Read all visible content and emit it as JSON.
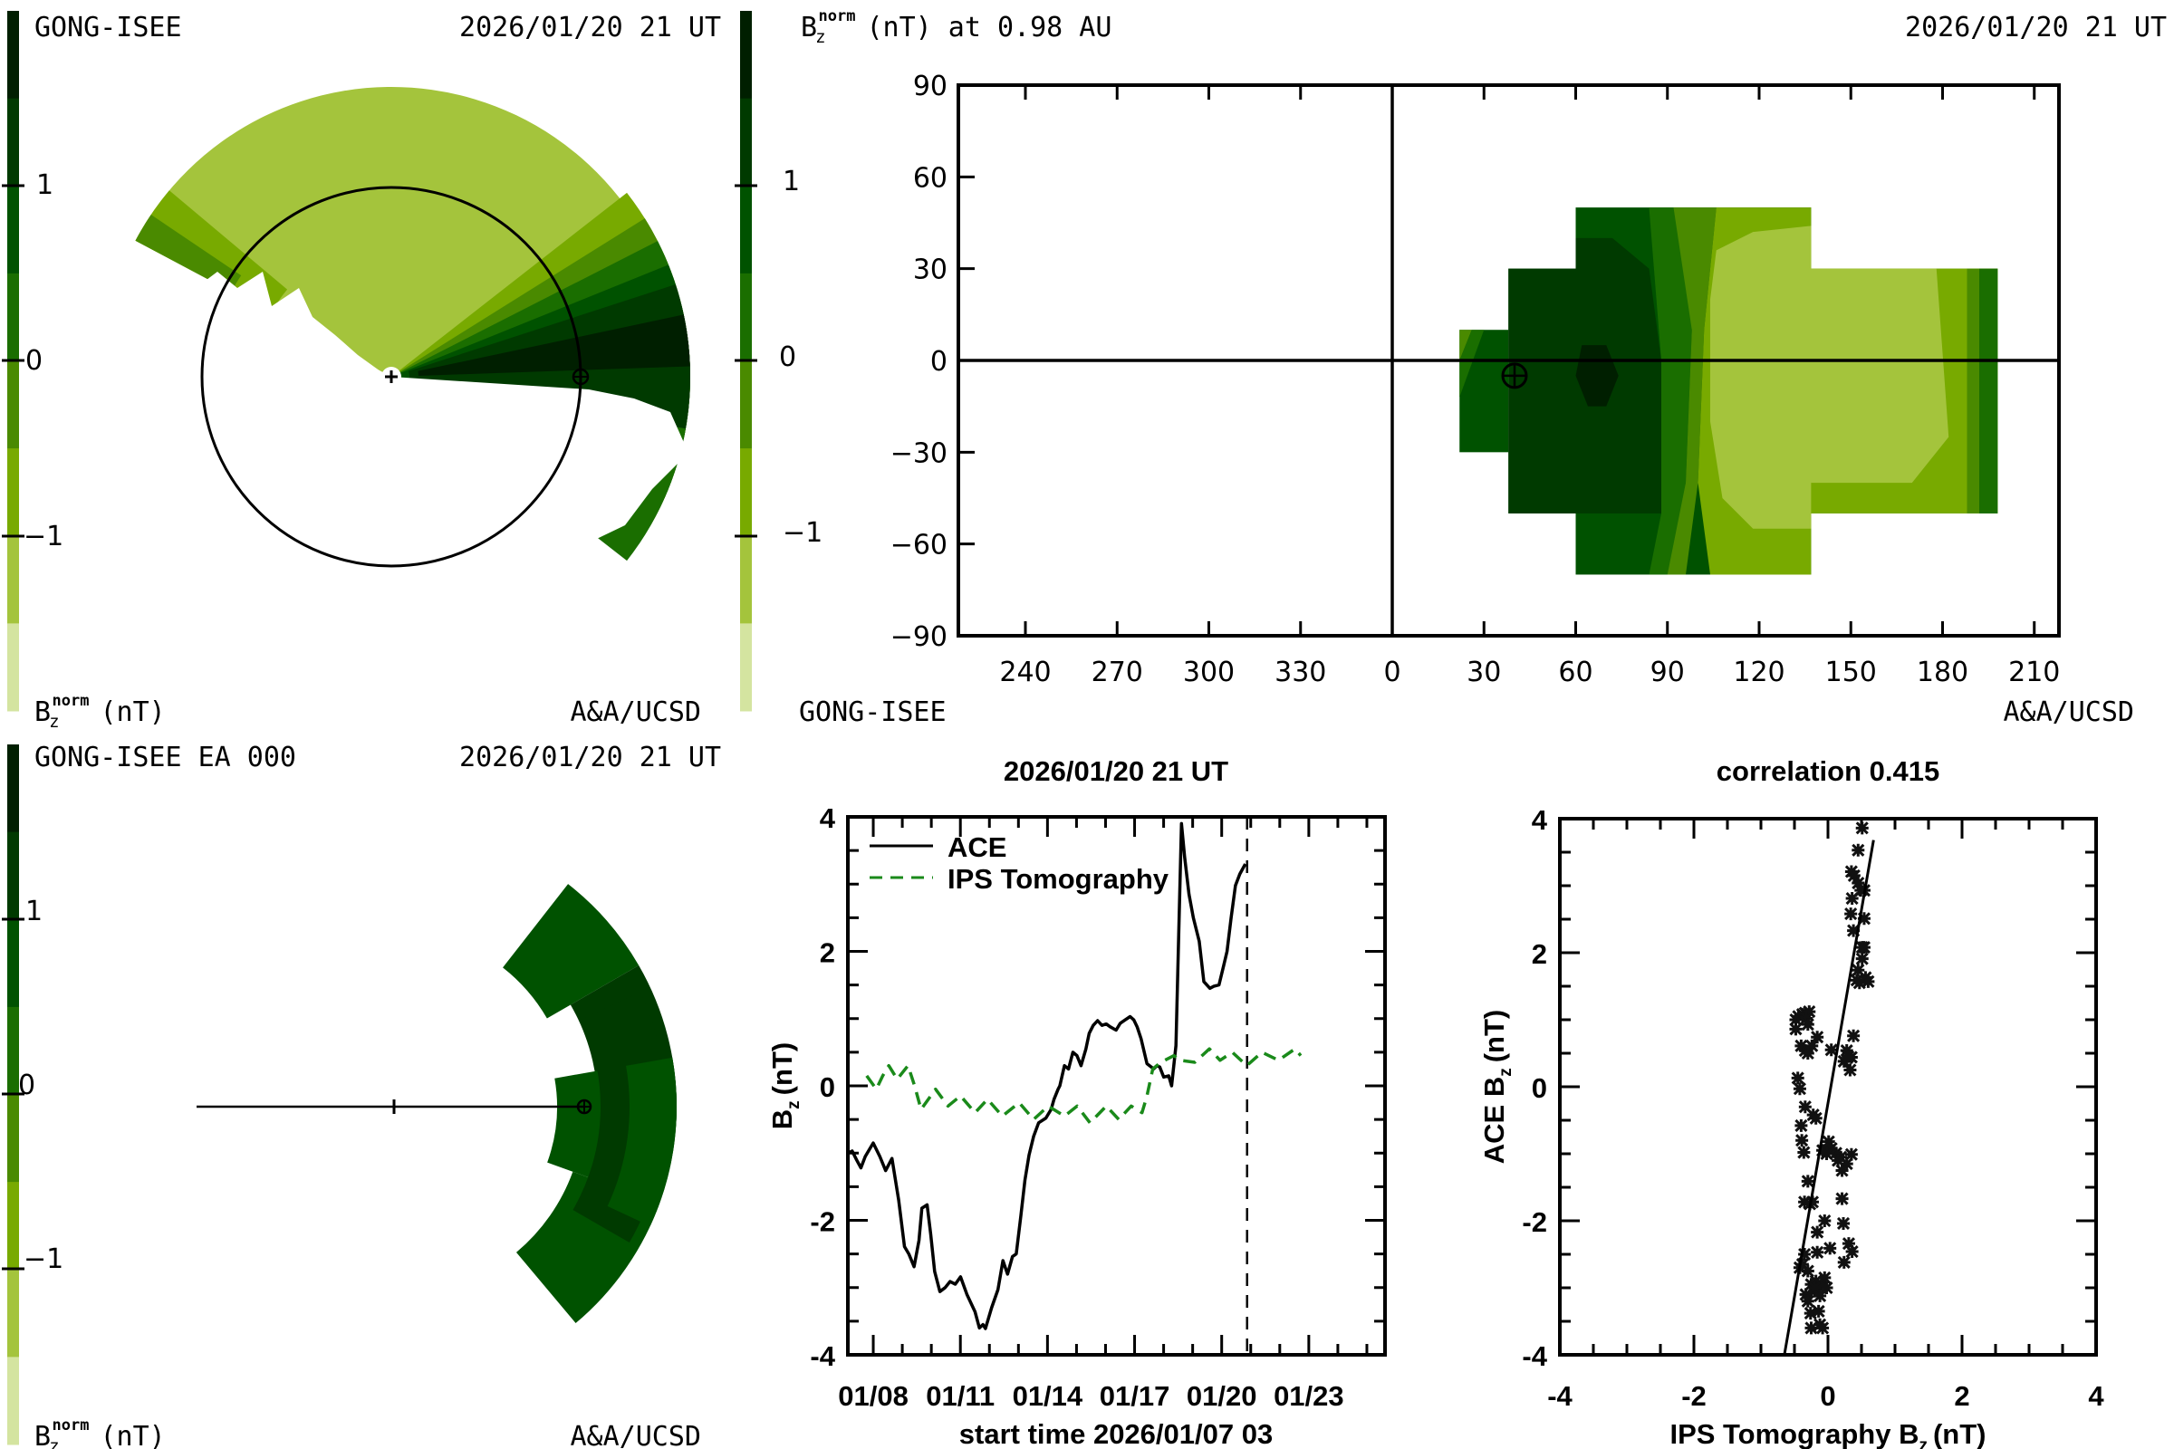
{
  "colors": {
    "bands": [
      "#d4e4a0",
      "#a4c43c",
      "#78aa00",
      "#4a8a00",
      "#1a6e00",
      "#005200",
      "#003a00",
      "#001f00"
    ],
    "ace_line": "#000000",
    "ips_line": "#1a8a1a"
  },
  "panel_tl": {
    "source": "GONG-ISEE",
    "time": "2026/01/20 21 UT",
    "units_base": "B",
    "units_sub": "z",
    "units_sup": "norm",
    "units_rest": "(nT)",
    "credit": "A&A/UCSD",
    "colorbar_ticks": [
      "1",
      "0",
      "−1"
    ]
  },
  "panel_tr": {
    "title_base": "B",
    "title_sub": "z",
    "title_sup": "norm",
    "title_rest": "(nT) at 0.98 AU",
    "time": "2026/01/20 21 UT",
    "source": "GONG-ISEE",
    "credit": "A&A/UCSD",
    "colorbar_ticks": [
      "1",
      "0",
      "−1"
    ],
    "lat_ticks": [
      "90",
      "60",
      "30",
      "0",
      "−30",
      "−60",
      "−90"
    ],
    "lon_ticks": [
      "240",
      "270",
      "300",
      "330",
      "0",
      "30",
      "60",
      "90",
      "120",
      "150",
      "180",
      "210"
    ]
  },
  "panel_bl": {
    "source": "GONG-ISEE EA 000",
    "time": "2026/01/20 21 UT",
    "units_base": "B",
    "units_sub": "z",
    "units_sup": "norm",
    "units_rest": "(nT)",
    "credit": "A&A/UCSD",
    "colorbar_ticks": [
      "1",
      "0",
      "−1"
    ]
  },
  "chart_data": [
    {
      "type": "line",
      "title": "2026/01/20 21 UT",
      "xlabel": "start time 2026/01/07 03",
      "ylabel_base": "B",
      "ylabel_sub": "z",
      "ylabel_rest": "(nT)",
      "x_unit": "days since start time",
      "xlim": [
        0,
        18.5
      ],
      "ylim": [
        -4,
        4
      ],
      "yticks": [
        4,
        2,
        0,
        -2,
        -4
      ],
      "ytick_labels": [
        "4",
        "2",
        "0",
        "-2",
        "-4"
      ],
      "xticks": [
        0.875,
        3.875,
        6.875,
        9.875,
        12.875,
        15.875
      ],
      "xtick_labels": [
        "01/08",
        "01/11",
        "01/14",
        "01/17",
        "01/20",
        "01/23"
      ],
      "current_time_marker": 13.75,
      "legend": [
        "ACE",
        "IPS Tomography"
      ],
      "legend_position": "top-left",
      "series": [
        {
          "name": "ACE",
          "style": "solid",
          "x": [
            0.0,
            0.15,
            0.3,
            0.45,
            0.6,
            0.875,
            1.1,
            1.3,
            1.52,
            1.75,
            1.95,
            2.1,
            2.28,
            2.45,
            2.55,
            2.73,
            2.85,
            2.99,
            3.17,
            3.35,
            3.52,
            3.7,
            3.88,
            4.1,
            4.38,
            4.53,
            4.65,
            4.74,
            4.95,
            5.17,
            5.34,
            5.5,
            5.67,
            5.8,
            5.96,
            6.1,
            6.24,
            6.4,
            6.57,
            6.82,
            7.0,
            7.1,
            7.24,
            7.3,
            7.46,
            7.6,
            7.75,
            7.89,
            8.03,
            8.2,
            8.31,
            8.45,
            8.6,
            8.75,
            8.9,
            9.03,
            9.15,
            9.24,
            9.38,
            9.55,
            9.72,
            9.85,
            9.96,
            10.1,
            10.3,
            10.45,
            10.53,
            10.65,
            10.74,
            10.88,
            11.05,
            11.15,
            11.3,
            11.49,
            11.6,
            11.75,
            11.9,
            12.1,
            12.26,
            12.47,
            12.6,
            12.78,
            12.95,
            13.06,
            13.2,
            13.35,
            13.5,
            13.69
          ],
          "y": [
            -1.0,
            -0.97,
            -1.1,
            -1.22,
            -1.05,
            -0.85,
            -1.05,
            -1.26,
            -1.08,
            -1.7,
            -2.39,
            -2.5,
            -2.69,
            -2.3,
            -1.82,
            -1.77,
            -2.2,
            -2.76,
            -3.06,
            -3.0,
            -2.91,
            -2.95,
            -2.84,
            -3.1,
            -3.36,
            -3.6,
            -3.55,
            -3.61,
            -3.3,
            -3.03,
            -2.6,
            -2.8,
            -2.54,
            -2.5,
            -1.93,
            -1.4,
            -1.03,
            -0.75,
            -0.55,
            -0.48,
            -0.35,
            -0.2,
            -0.05,
            0.0,
            0.3,
            0.25,
            0.5,
            0.45,
            0.3,
            0.55,
            0.78,
            0.9,
            0.97,
            0.9,
            0.92,
            0.88,
            0.85,
            0.83,
            0.93,
            0.98,
            1.03,
            0.98,
            0.88,
            0.7,
            0.33,
            0.28,
            0.25,
            0.3,
            0.28,
            0.13,
            0.15,
            0.0,
            0.6,
            3.9,
            3.4,
            2.85,
            2.5,
            2.15,
            1.55,
            1.45,
            1.48,
            1.5,
            1.8,
            2.0,
            2.5,
            2.98,
            3.15,
            3.3
          ]
        },
        {
          "name": "IPS Tomography",
          "style": "dashed",
          "x": [
            0.65,
            0.98,
            1.2,
            1.41,
            1.7,
            2.07,
            2.3,
            2.52,
            3.02,
            3.45,
            3.88,
            4.38,
            4.81,
            5.32,
            5.9,
            6.4,
            6.9,
            7.46,
            7.9,
            8.34,
            8.9,
            9.33,
            9.76,
            10.13,
            10.3,
            10.5,
            10.78,
            11.23,
            11.44,
            11.95,
            12.45,
            12.82,
            13.24,
            13.74,
            14.26,
            14.83,
            15.4,
            15.6
          ],
          "y": [
            0.15,
            -0.05,
            0.15,
            0.3,
            0.1,
            0.3,
            0.0,
            -0.35,
            -0.05,
            -0.3,
            -0.15,
            -0.4,
            -0.2,
            -0.45,
            -0.25,
            -0.5,
            -0.3,
            -0.45,
            -0.3,
            -0.55,
            -0.3,
            -0.5,
            -0.3,
            -0.4,
            -0.15,
            0.25,
            0.35,
            0.45,
            0.38,
            0.35,
            0.55,
            0.38,
            0.5,
            0.3,
            0.5,
            0.38,
            0.55,
            0.45
          ]
        }
      ]
    },
    {
      "type": "scatter",
      "title": "correlation 0.415",
      "xlabel_base": "IPS Tomography B",
      "xlabel_sub": "z",
      "xlabel_rest": "(nT)",
      "ylabel_base": "ACE B",
      "ylabel_sub": "z",
      "ylabel_rest": "(nT)",
      "xlim": [
        -4,
        4
      ],
      "ylim": [
        -4,
        4
      ],
      "xticks": [
        -4,
        -2,
        0,
        2,
        4
      ],
      "xtick_labels": [
        "-4",
        "-2",
        "0",
        "2",
        "4"
      ],
      "yticks": [
        4,
        2,
        0,
        -2,
        -4
      ],
      "ytick_labels": [
        "4",
        "2",
        "0",
        "-2",
        "-4"
      ],
      "marker": "asterisk",
      "fit_line": {
        "x": [
          -0.65,
          0.68
        ],
        "y": [
          -4.0,
          3.68
        ]
      },
      "points": [
        [
          0.51,
          3.86
        ],
        [
          0.45,
          3.53
        ],
        [
          0.35,
          3.21
        ],
        [
          0.39,
          3.15
        ],
        [
          0.45,
          3.04
        ],
        [
          0.54,
          2.93
        ],
        [
          0.49,
          2.93
        ],
        [
          0.36,
          2.81
        ],
        [
          0.34,
          2.58
        ],
        [
          0.54,
          2.51
        ],
        [
          0.38,
          2.33
        ],
        [
          0.54,
          2.08
        ],
        [
          0.51,
          2.08
        ],
        [
          0.51,
          1.91
        ],
        [
          0.45,
          1.74
        ],
        [
          0.43,
          1.59
        ],
        [
          0.56,
          1.63
        ],
        [
          0.6,
          1.57
        ],
        [
          0.47,
          1.55
        ],
        [
          -0.48,
          1.0
        ],
        [
          -0.44,
          1.05
        ],
        [
          -0.38,
          1.08
        ],
        [
          -0.34,
          1.1
        ],
        [
          -0.28,
          1.12
        ],
        [
          -0.32,
          1.02
        ],
        [
          -0.48,
          0.86
        ],
        [
          -0.3,
          0.93
        ],
        [
          -0.4,
          0.61
        ],
        [
          -0.34,
          0.54
        ],
        [
          -0.24,
          0.61
        ],
        [
          -0.3,
          0.5
        ],
        [
          -0.16,
          0.74
        ],
        [
          0.05,
          0.55
        ],
        [
          0.28,
          0.54
        ],
        [
          0.35,
          0.44
        ],
        [
          0.24,
          0.38
        ],
        [
          0.33,
          0.25
        ],
        [
          0.3,
          0.45
        ],
        [
          0.38,
          0.76
        ],
        [
          -0.45,
          0.13
        ],
        [
          -0.42,
          -0.03
        ],
        [
          -0.34,
          -0.3
        ],
        [
          -0.22,
          -0.42
        ],
        [
          -0.18,
          -0.47
        ],
        [
          -0.4,
          -0.58
        ],
        [
          -0.39,
          -0.8
        ],
        [
          -0.36,
          -0.98
        ],
        [
          -0.08,
          -0.95
        ],
        [
          0.01,
          -0.82
        ],
        [
          0.05,
          -0.92
        ],
        [
          0.12,
          -0.99
        ],
        [
          0.19,
          -1.05
        ],
        [
          -0.02,
          -1.0
        ],
        [
          0.28,
          -1.15
        ],
        [
          0.21,
          -1.25
        ],
        [
          0.35,
          -1.01
        ],
        [
          0.15,
          -1.1
        ],
        [
          -0.3,
          -1.41
        ],
        [
          -0.35,
          -1.72
        ],
        [
          -0.23,
          -1.72
        ],
        [
          -0.27,
          -1.75
        ],
        [
          0.21,
          -1.67
        ],
        [
          -0.05,
          -2.0
        ],
        [
          0.23,
          -2.04
        ],
        [
          -0.16,
          -2.17
        ],
        [
          0.03,
          -2.41
        ],
        [
          0.31,
          -2.34
        ],
        [
          0.36,
          -2.46
        ],
        [
          -0.35,
          -2.5
        ],
        [
          -0.16,
          -2.47
        ],
        [
          0.24,
          -2.62
        ],
        [
          -0.38,
          -2.65
        ],
        [
          -0.3,
          -2.75
        ],
        [
          -0.25,
          -2.95
        ],
        [
          -0.18,
          -2.9
        ],
        [
          -0.12,
          -3.0
        ],
        [
          -0.05,
          -2.85
        ],
        [
          -0.2,
          -3.05
        ],
        [
          -0.1,
          -2.95
        ],
        [
          -0.02,
          -3.0
        ],
        [
          -0.33,
          -3.1
        ],
        [
          -0.2,
          -3.0
        ],
        [
          -0.12,
          -3.12
        ],
        [
          -0.3,
          -3.2
        ],
        [
          -0.26,
          -3.38
        ],
        [
          -0.14,
          -3.35
        ],
        [
          -0.25,
          -3.6
        ],
        [
          -0.12,
          -3.55
        ],
        [
          -0.08,
          -3.6
        ],
        [
          -0.42,
          -2.7
        ]
      ]
    }
  ]
}
